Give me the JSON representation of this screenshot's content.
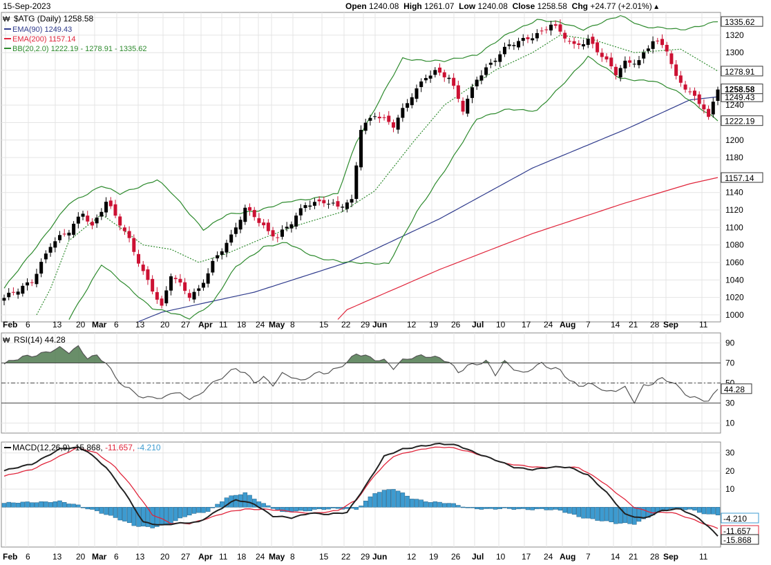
{
  "header": {
    "date": "15-Sep-2023",
    "open_label": "Open",
    "open": "1240.08",
    "high_label": "High",
    "high": "1261.07",
    "low_label": "Low",
    "low": "1240.08",
    "close_label": "Close",
    "close": "1258.58",
    "chg_label": "Chg",
    "chg": "+24.77 (+2.01%)"
  },
  "colors": {
    "up": "#000000",
    "down": "#cc1133",
    "ema90": "#2e3a8c",
    "ema200": "#e0243a",
    "bb": "#2d8a2d",
    "rsi": "#555555",
    "rsi_fill": "#4f7a4f",
    "macd": "#222222",
    "signal": "#e0243a",
    "hist": "#3d9bd0",
    "grid": "#e4e4e4"
  },
  "chart_data": [
    {
      "type": "candlestick",
      "legend": [
        "$ATG (Daily) 1258.58",
        "EMA(90) 1249.43",
        "EMA(200) 1157.14",
        "BB(20,2.0) 1222.19 - 1278.91 - 1335.62"
      ],
      "x_tick_labels": [
        "Feb",
        "6",
        "13",
        "20",
        "Mar",
        "6",
        "13",
        "20",
        "27",
        "Apr",
        "11",
        "18",
        "24",
        "May",
        "8",
        "15",
        "22",
        "29",
        "Jun",
        "12",
        "19",
        "26",
        "Jul",
        "10",
        "17",
        "24",
        "Aug",
        "7",
        "14",
        "21",
        "28",
        "Sep",
        "11"
      ],
      "y_ticks": [
        1000,
        1020,
        1040,
        1060,
        1080,
        1100,
        1120,
        1140,
        1160,
        1180,
        1200,
        1220,
        1240,
        1260,
        1280,
        1300,
        1320,
        1340
      ],
      "y_tick_labels": [
        "1000",
        "1020",
        "1040",
        "1060",
        "1080",
        "1100",
        "1120",
        "1140",
        "1180",
        "1200",
        "1240",
        "1300",
        "1320"
      ],
      "ylim": [
        992,
        1346
      ],
      "right_labels": [
        "1335.62",
        "1278.91",
        "1258.58",
        "1249.43",
        "1222.19",
        "1157.14"
      ],
      "close_anchors": [
        [
          0,
          1018
        ],
        [
          3,
          1028
        ],
        [
          6,
          1040
        ],
        [
          10,
          1080
        ],
        [
          14,
          1095
        ],
        [
          17,
          1118
        ],
        [
          19,
          1102
        ],
        [
          22,
          1130
        ],
        [
          24,
          1112
        ],
        [
          27,
          1085
        ],
        [
          30,
          1050
        ],
        [
          32,
          1030
        ],
        [
          34,
          1008
        ],
        [
          36,
          1045
        ],
        [
          40,
          1022
        ],
        [
          42,
          1030
        ],
        [
          45,
          1060
        ],
        [
          49,
          1088
        ],
        [
          52,
          1122
        ],
        [
          54,
          1115
        ],
        [
          57,
          1095
        ],
        [
          59,
          1088
        ],
        [
          62,
          1105
        ],
        [
          65,
          1128
        ],
        [
          69,
          1130
        ],
        [
          72,
          1122
        ],
        [
          75,
          1130
        ],
        [
          77,
          1215
        ],
        [
          80,
          1230
        ],
        [
          84,
          1215
        ],
        [
          88,
          1252
        ],
        [
          91,
          1274
        ],
        [
          93,
          1278
        ],
        [
          96,
          1270
        ],
        [
          99,
          1235
        ],
        [
          102,
          1272
        ],
        [
          106,
          1292
        ],
        [
          109,
          1308
        ],
        [
          113,
          1318
        ],
        [
          116,
          1324
        ],
        [
          118,
          1332
        ],
        [
          120,
          1322
        ],
        [
          123,
          1308
        ],
        [
          126,
          1316
        ],
        [
          129,
          1296
        ],
        [
          132,
          1275
        ],
        [
          134,
          1288
        ],
        [
          137,
          1292
        ],
        [
          140,
          1315
        ],
        [
          143,
          1302
        ],
        [
          145,
          1270
        ],
        [
          148,
          1256
        ],
        [
          151,
          1238
        ],
        [
          152,
          1225
        ],
        [
          154,
          1258.58
        ]
      ],
      "ema90_anchors": [
        [
          14,
          960
        ],
        [
          34,
          1003
        ],
        [
          54,
          1026
        ],
        [
          74,
          1060
        ],
        [
          94,
          1110
        ],
        [
          114,
          1168
        ],
        [
          134,
          1212
        ],
        [
          148,
          1246
        ],
        [
          154,
          1249.43
        ]
      ],
      "ema200_anchors": [
        [
          64,
          950
        ],
        [
          74,
          1006
        ],
        [
          94,
          1052
        ],
        [
          114,
          1093
        ],
        [
          134,
          1128
        ],
        [
          148,
          1150
        ],
        [
          154,
          1157.14
        ]
      ],
      "bb_upper_anchors": [
        [
          0,
          1030
        ],
        [
          6,
          1072
        ],
        [
          14,
          1127
        ],
        [
          21,
          1148
        ],
        [
          25,
          1138
        ],
        [
          33,
          1155
        ],
        [
          36,
          1140
        ],
        [
          43,
          1098
        ],
        [
          48,
          1114
        ],
        [
          55,
          1120
        ],
        [
          62,
          1130
        ],
        [
          72,
          1138
        ],
        [
          76,
          1198
        ],
        [
          86,
          1293
        ],
        [
          95,
          1290
        ],
        [
          102,
          1298
        ],
        [
          109,
          1322
        ],
        [
          115,
          1338
        ],
        [
          120,
          1334
        ],
        [
          125,
          1327
        ],
        [
          133,
          1342
        ],
        [
          138,
          1330
        ],
        [
          146,
          1326
        ],
        [
          154,
          1335.62
        ]
      ],
      "bb_middle_anchors": [
        [
          2,
          950
        ],
        [
          10,
          1030
        ],
        [
          14,
          1085
        ],
        [
          21,
          1115
        ],
        [
          25,
          1100
        ],
        [
          30,
          1080
        ],
        [
          36,
          1075
        ],
        [
          42,
          1060
        ],
        [
          48,
          1070
        ],
        [
          56,
          1088
        ],
        [
          63,
          1102
        ],
        [
          73,
          1118
        ],
        [
          80,
          1142
        ],
        [
          88,
          1196
        ],
        [
          95,
          1240
        ],
        [
          106,
          1280
        ],
        [
          114,
          1300
        ],
        [
          120,
          1320
        ],
        [
          127,
          1315
        ],
        [
          136,
          1300
        ],
        [
          146,
          1304
        ],
        [
          154,
          1278.91
        ]
      ],
      "bb_lower_anchors": [
        [
          4,
          920
        ],
        [
          14,
          995
        ],
        [
          21,
          1058
        ],
        [
          27,
          1030
        ],
        [
          32,
          1008
        ],
        [
          40,
          996
        ],
        [
          45,
          1014
        ],
        [
          50,
          1055
        ],
        [
          56,
          1078
        ],
        [
          61,
          1082
        ],
        [
          65,
          1072
        ],
        [
          68,
          1065
        ],
        [
          73,
          1060
        ],
        [
          77,
          1060
        ],
        [
          83,
          1058
        ],
        [
          89,
          1118
        ],
        [
          96,
          1172
        ],
        [
          102,
          1225
        ],
        [
          109,
          1235
        ],
        [
          115,
          1234
        ],
        [
          120,
          1260
        ],
        [
          126,
          1296
        ],
        [
          133,
          1270
        ],
        [
          140,
          1268
        ],
        [
          146,
          1253
        ],
        [
          154,
          1222.19
        ]
      ]
    },
    {
      "type": "line",
      "legend": "RSI(14) 44.28",
      "y_ticks": [
        10,
        30,
        50,
        70,
        90
      ],
      "ylim": [
        0,
        100
      ],
      "right_labels": [
        "44.28"
      ],
      "rsi_anchors": [
        [
          0,
          68
        ],
        [
          4,
          76
        ],
        [
          8,
          80
        ],
        [
          12,
          84
        ],
        [
          14,
          80
        ],
        [
          16,
          86
        ],
        [
          18,
          76
        ],
        [
          20,
          78
        ],
        [
          22,
          70
        ],
        [
          24,
          55
        ],
        [
          26,
          45
        ],
        [
          28,
          42
        ],
        [
          30,
          35
        ],
        [
          32,
          38
        ],
        [
          34,
          33
        ],
        [
          36,
          40
        ],
        [
          38,
          38
        ],
        [
          40,
          35
        ],
        [
          42,
          38
        ],
        [
          44,
          48
        ],
        [
          46,
          52
        ],
        [
          48,
          58
        ],
        [
          50,
          64
        ],
        [
          52,
          60
        ],
        [
          54,
          52
        ],
        [
          56,
          56
        ],
        [
          58,
          48
        ],
        [
          60,
          58
        ],
        [
          62,
          56
        ],
        [
          64,
          52
        ],
        [
          66,
          58
        ],
        [
          68,
          61
        ],
        [
          70,
          60
        ],
        [
          72,
          64
        ],
        [
          74,
          70
        ],
        [
          76,
          80
        ],
        [
          78,
          78
        ],
        [
          80,
          74
        ],
        [
          82,
          72
        ],
        [
          84,
          64
        ],
        [
          86,
          72
        ],
        [
          88,
          76
        ],
        [
          90,
          78
        ],
        [
          92,
          77
        ],
        [
          94,
          74
        ],
        [
          96,
          70
        ],
        [
          98,
          60
        ],
        [
          100,
          68
        ],
        [
          102,
          70
        ],
        [
          104,
          72
        ],
        [
          106,
          58
        ],
        [
          108,
          70
        ],
        [
          110,
          64
        ],
        [
          112,
          60
        ],
        [
          114,
          66
        ],
        [
          116,
          70
        ],
        [
          118,
          64
        ],
        [
          120,
          62
        ],
        [
          122,
          52
        ],
        [
          124,
          48
        ],
        [
          126,
          50
        ],
        [
          128,
          47
        ],
        [
          130,
          40
        ],
        [
          132,
          42
        ],
        [
          134,
          45
        ],
        [
          136,
          32
        ],
        [
          138,
          48
        ],
        [
          140,
          50
        ],
        [
          142,
          54
        ],
        [
          144,
          50
        ],
        [
          146,
          44
        ],
        [
          148,
          36
        ],
        [
          150,
          36
        ],
        [
          152,
          31
        ],
        [
          154,
          44.28
        ]
      ]
    },
    {
      "type": "line+bar",
      "legend": "MACD(12,26,9)",
      "legend_values": [
        "-15.868",
        "-11.657",
        "-4.210"
      ],
      "y_ticks": [
        10,
        20,
        30
      ],
      "ylim": [
        -22,
        36
      ],
      "right_labels": [
        "-4.210",
        "-11.657",
        "-15.868"
      ],
      "macd_anchors": [
        [
          0,
          20
        ],
        [
          6,
          24
        ],
        [
          12,
          32
        ],
        [
          16,
          33
        ],
        [
          18,
          31
        ],
        [
          22,
          22
        ],
        [
          26,
          8
        ],
        [
          30,
          -8
        ],
        [
          34,
          -10
        ],
        [
          38,
          -9
        ],
        [
          42,
          -8
        ],
        [
          46,
          -2
        ],
        [
          50,
          4
        ],
        [
          54,
          2
        ],
        [
          58,
          -5
        ],
        [
          62,
          -6
        ],
        [
          66,
          -3
        ],
        [
          70,
          -4
        ],
        [
          74,
          -3
        ],
        [
          78,
          12
        ],
        [
          82,
          28
        ],
        [
          86,
          32
        ],
        [
          90,
          34
        ],
        [
          94,
          35
        ],
        [
          98,
          34
        ],
        [
          102,
          30
        ],
        [
          106,
          26
        ],
        [
          110,
          22
        ],
        [
          114,
          21
        ],
        [
          118,
          22
        ],
        [
          122,
          22
        ],
        [
          126,
          18
        ],
        [
          130,
          8
        ],
        [
          134,
          -4
        ],
        [
          138,
          -6
        ],
        [
          142,
          -2
        ],
        [
          146,
          -1
        ],
        [
          150,
          -6
        ],
        [
          154,
          -15.868
        ]
      ],
      "signal_anchors": [
        [
          0,
          17
        ],
        [
          6,
          21
        ],
        [
          12,
          28
        ],
        [
          16,
          33
        ],
        [
          20,
          30
        ],
        [
          24,
          22
        ],
        [
          28,
          10
        ],
        [
          32,
          -4
        ],
        [
          36,
          -9
        ],
        [
          40,
          -9
        ],
        [
          44,
          -6
        ],
        [
          48,
          -3
        ],
        [
          52,
          -1
        ],
        [
          56,
          -1
        ],
        [
          60,
          -2
        ],
        [
          64,
          -3
        ],
        [
          68,
          -3
        ],
        [
          72,
          -2
        ],
        [
          76,
          4
        ],
        [
          80,
          18
        ],
        [
          84,
          28
        ],
        [
          88,
          31
        ],
        [
          92,
          33
        ],
        [
          96,
          33
        ],
        [
          100,
          31
        ],
        [
          104,
          28
        ],
        [
          108,
          24
        ],
        [
          112,
          23
        ],
        [
          116,
          22
        ],
        [
          120,
          22
        ],
        [
          124,
          22
        ],
        [
          128,
          16
        ],
        [
          132,
          8
        ],
        [
          136,
          0
        ],
        [
          140,
          -3
        ],
        [
          144,
          -3
        ],
        [
          148,
          -6
        ],
        [
          152,
          -10
        ],
        [
          154,
          -11.657
        ]
      ],
      "hist_anchors": [
        [
          0,
          2
        ],
        [
          6,
          3
        ],
        [
          12,
          3
        ],
        [
          16,
          1
        ],
        [
          20,
          -2
        ],
        [
          24,
          -6
        ],
        [
          28,
          -10
        ],
        [
          32,
          -11
        ],
        [
          36,
          -9
        ],
        [
          40,
          -4
        ],
        [
          44,
          -2
        ],
        [
          48,
          5
        ],
        [
          52,
          8
        ],
        [
          56,
          2
        ],
        [
          60,
          -3
        ],
        [
          64,
          -2
        ],
        [
          68,
          -1
        ],
        [
          72,
          -1
        ],
        [
          76,
          -1
        ],
        [
          80,
          8
        ],
        [
          84,
          10
        ],
        [
          88,
          5
        ],
        [
          92,
          3
        ],
        [
          96,
          2
        ],
        [
          100,
          0
        ],
        [
          104,
          -1
        ],
        [
          108,
          -1
        ],
        [
          112,
          -1
        ],
        [
          116,
          -1
        ],
        [
          120,
          -2
        ],
        [
          124,
          -5
        ],
        [
          128,
          -7
        ],
        [
          132,
          -9
        ],
        [
          136,
          -9
        ],
        [
          140,
          -4
        ],
        [
          144,
          -1
        ],
        [
          148,
          -1
        ],
        [
          152,
          -4
        ],
        [
          154,
          -4.21
        ]
      ]
    }
  ]
}
